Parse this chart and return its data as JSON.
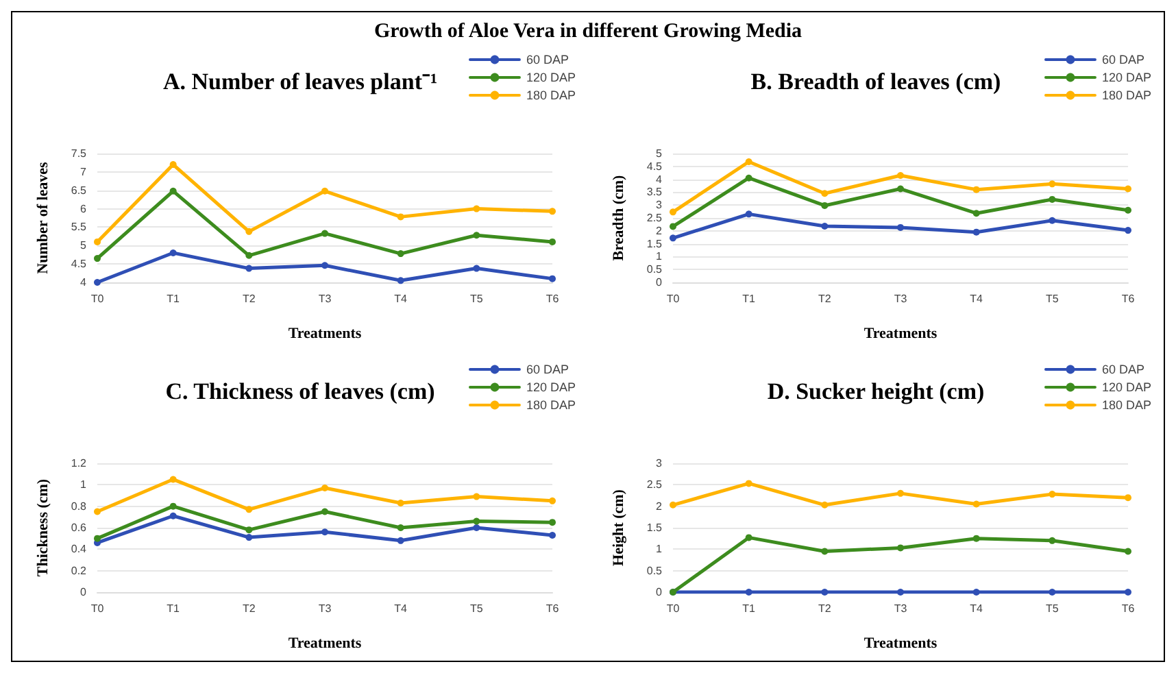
{
  "chart_data": [
    {
      "type": "line",
      "title": "A. Number of leaves plant⁻¹",
      "xlabel": "Treatments",
      "ylabel": "Number of leaves",
      "annotations": [
        "Growth of Aloe Vera in different Growing Media"
      ],
      "categories": [
        "T0",
        "T1",
        "T2",
        "T3",
        "T4",
        "T5",
        "T6"
      ],
      "series": [
        {
          "name": "60 DAP",
          "color": "#2f4fb5",
          "values": [
            4.0,
            4.8,
            4.38,
            4.46,
            4.05,
            4.38,
            4.1
          ]
        },
        {
          "name": "120 DAP",
          "color": "#3d8c1e",
          "values": [
            4.65,
            6.48,
            4.73,
            5.33,
            4.78,
            5.28,
            5.1
          ]
        },
        {
          "name": "180 DAP",
          "color": "#ffb300",
          "values": [
            5.1,
            7.2,
            5.38,
            6.48,
            5.78,
            6.0,
            5.93
          ]
        }
      ],
      "ylim": [
        4,
        7.5
      ],
      "yticks": [
        4,
        4.5,
        5,
        5.5,
        6,
        6.5,
        7,
        7.5
      ],
      "grid": "y",
      "legend": "top right",
      "marker": "circle",
      "line_style": "solid"
    },
    {
      "type": "line",
      "title": "B. Breadth of leaves (cm)",
      "xlabel": "Treatments",
      "ylabel": "Breadth (cm)",
      "categories": [
        "T0",
        "T1",
        "T2",
        "T3",
        "T4",
        "T5",
        "T6"
      ],
      "series": [
        {
          "name": "60 DAP",
          "color": "#2f4fb5",
          "values": [
            1.72,
            2.65,
            2.18,
            2.13,
            1.95,
            2.4,
            2.02
          ]
        },
        {
          "name": "120 DAP",
          "color": "#3d8c1e",
          "values": [
            2.17,
            4.05,
            2.98,
            3.63,
            2.68,
            3.22,
            2.8
          ]
        },
        {
          "name": "180 DAP",
          "color": "#ffb300",
          "values": [
            2.73,
            4.68,
            3.45,
            4.15,
            3.6,
            3.82,
            3.63
          ]
        }
      ],
      "ylim": [
        0,
        5
      ],
      "yticks": [
        0,
        0.5,
        1,
        1.5,
        2,
        2.5,
        3,
        3.5,
        4,
        4.5,
        5
      ],
      "grid": "y",
      "legend": "top right",
      "marker": "circle",
      "line_style": "solid"
    },
    {
      "type": "line",
      "title": "C. Thickness of leaves (cm)",
      "xlabel": "Treatments",
      "ylabel": "Thickness (cm)",
      "categories": [
        "T0",
        "T1",
        "T2",
        "T3",
        "T4",
        "T5",
        "T6"
      ],
      "series": [
        {
          "name": "60 DAP",
          "color": "#2f4fb5",
          "values": [
            0.46,
            0.71,
            0.51,
            0.56,
            0.48,
            0.6,
            0.53
          ]
        },
        {
          "name": "120 DAP",
          "color": "#3d8c1e",
          "values": [
            0.5,
            0.8,
            0.58,
            0.75,
            0.6,
            0.66,
            0.65
          ]
        },
        {
          "name": "180 DAP",
          "color": "#ffb300",
          "values": [
            0.75,
            1.05,
            0.77,
            0.97,
            0.83,
            0.89,
            0.85
          ]
        }
      ],
      "ylim": [
        0,
        1.2
      ],
      "yticks": [
        0,
        0.2,
        0.4,
        0.6,
        0.8,
        1,
        1.2
      ],
      "grid": "y",
      "legend": "top right",
      "marker": "circle",
      "line_style": "solid"
    },
    {
      "type": "line",
      "title": "D. Sucker height (cm)",
      "xlabel": "Treatments",
      "ylabel": "Height (cm)",
      "categories": [
        "T0",
        "T1",
        "T2",
        "T3",
        "T4",
        "T5",
        "T6"
      ],
      "series": [
        {
          "name": "60 DAP",
          "color": "#2f4fb5",
          "values": [
            0,
            0,
            0,
            0,
            0,
            0,
            0
          ]
        },
        {
          "name": "120 DAP",
          "color": "#3d8c1e",
          "values": [
            0,
            1.27,
            0.95,
            1.03,
            1.25,
            1.2,
            0.95
          ]
        },
        {
          "name": "180 DAP",
          "color": "#ffb300",
          "values": [
            2.03,
            2.53,
            2.03,
            2.3,
            2.05,
            2.28,
            2.2
          ]
        }
      ],
      "ylim": [
        0,
        3
      ],
      "yticks": [
        0,
        0.5,
        1,
        1.5,
        2,
        2.5,
        3
      ],
      "grid": "y",
      "legend": "top right",
      "marker": "circle",
      "line_style": "solid"
    }
  ]
}
